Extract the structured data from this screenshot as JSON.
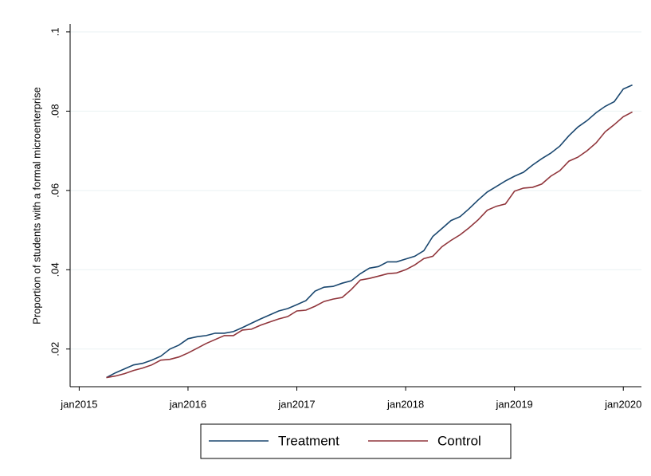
{
  "chart_data": {
    "type": "line",
    "y_label": "Proportion of students with a formal microenterprise",
    "x": [
      "2015-04",
      "2015-05",
      "2015-06",
      "2015-07",
      "2015-08",
      "2015-09",
      "2015-10",
      "2015-11",
      "2015-12",
      "2016-01",
      "2016-02",
      "2016-03",
      "2016-04",
      "2016-05",
      "2016-06",
      "2016-07",
      "2016-08",
      "2016-09",
      "2016-10",
      "2016-11",
      "2016-12",
      "2017-01",
      "2017-02",
      "2017-03",
      "2017-04",
      "2017-05",
      "2017-06",
      "2017-07",
      "2017-08",
      "2017-09",
      "2017-10",
      "2017-11",
      "2017-12",
      "2018-01",
      "2018-02",
      "2018-03",
      "2018-04",
      "2018-05",
      "2018-06",
      "2018-07",
      "2018-08",
      "2018-09",
      "2018-10",
      "2018-11",
      "2018-12",
      "2019-01",
      "2019-02",
      "2019-03",
      "2019-04",
      "2019-05",
      "2019-06",
      "2019-07",
      "2019-08",
      "2019-09",
      "2019-10",
      "2019-11",
      "2019-12",
      "2020-01",
      "2020-02"
    ],
    "series": [
      {
        "name": "Treatment",
        "color": "#1a476f",
        "values": [
          0.0128,
          0.014,
          0.015,
          0.016,
          0.0164,
          0.0172,
          0.0182,
          0.02,
          0.021,
          0.0226,
          0.0231,
          0.0234,
          0.024,
          0.024,
          0.0244,
          0.0254,
          0.0265,
          0.0276,
          0.0286,
          0.0296,
          0.0302,
          0.0312,
          0.0322,
          0.0346,
          0.0356,
          0.0358,
          0.0366,
          0.0372,
          0.039,
          0.0404,
          0.0408,
          0.042,
          0.042,
          0.0427,
          0.0434,
          0.0448,
          0.0484,
          0.0504,
          0.0524,
          0.0534,
          0.0554,
          0.0576,
          0.0596,
          0.061,
          0.0624,
          0.0636,
          0.0646,
          0.0664,
          0.068,
          0.0694,
          0.0712,
          0.0738,
          0.076,
          0.0776,
          0.0796,
          0.0812,
          0.0824,
          0.0856,
          0.0866
        ]
      },
      {
        "name": "Control",
        "color": "#90353b",
        "values": [
          0.0128,
          0.0132,
          0.0138,
          0.0146,
          0.0152,
          0.016,
          0.0172,
          0.0174,
          0.018,
          0.019,
          0.0202,
          0.0214,
          0.0224,
          0.0234,
          0.0234,
          0.0248,
          0.025,
          0.026,
          0.0268,
          0.0276,
          0.0282,
          0.0296,
          0.0298,
          0.0308,
          0.032,
          0.0326,
          0.033,
          0.035,
          0.0374,
          0.0378,
          0.0384,
          0.039,
          0.0392,
          0.04,
          0.0412,
          0.0428,
          0.0434,
          0.0458,
          0.0474,
          0.0488,
          0.0506,
          0.0526,
          0.055,
          0.056,
          0.0566,
          0.0598,
          0.0606,
          0.0608,
          0.0616,
          0.0636,
          0.065,
          0.0674,
          0.0684,
          0.07,
          0.072,
          0.0748,
          0.0766,
          0.0786,
          0.0798
        ]
      }
    ],
    "xlim": [
      "2014-12",
      "2020-03"
    ],
    "xticks": [
      {
        "value": "2015-01",
        "label": "jan2015"
      },
      {
        "value": "2016-01",
        "label": "jan2016"
      },
      {
        "value": "2017-01",
        "label": "jan2017"
      },
      {
        "value": "2018-01",
        "label": "jan2018"
      },
      {
        "value": "2019-01",
        "label": "jan2019"
      },
      {
        "value": "2020-01",
        "label": "jan2020"
      }
    ],
    "ylim": [
      0.0105,
      0.102
    ],
    "yticks": [
      {
        "value": 0.02,
        "label": ".02"
      },
      {
        "value": 0.04,
        "label": ".04"
      },
      {
        "value": 0.06,
        "label": ".06"
      },
      {
        "value": 0.08,
        "label": ".08"
      },
      {
        "value": 0.1,
        "label": ".1"
      }
    ],
    "grid": true,
    "legend": "bottom"
  }
}
